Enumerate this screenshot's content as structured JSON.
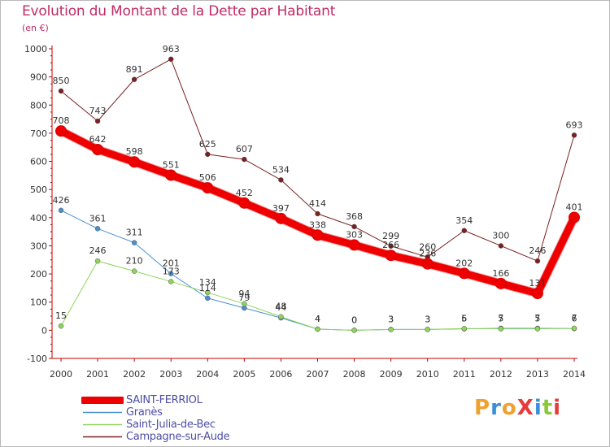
{
  "title": "Evolution du Montant de la Dette par Habitant",
  "subtitle": "(en €)",
  "logo_text": "ProXiti",
  "logo_colors": [
    "#f0a030",
    "#3a8fd8",
    "#f0a030",
    "#e83a3a",
    "#3a8fd8",
    "#8ac83a",
    "#e83a3a"
  ],
  "chart_data": {
    "type": "line",
    "x": [
      "2000",
      "2001",
      "2002",
      "2003",
      "2004",
      "2005",
      "2006",
      "2007",
      "2008",
      "2009",
      "2010",
      "2011",
      "2012",
      "2013",
      "2014"
    ],
    "ylim": [
      -100,
      1000
    ],
    "yticks": [
      -100,
      0,
      100,
      200,
      300,
      400,
      500,
      600,
      700,
      800,
      900,
      1000
    ],
    "grid": false,
    "legend_position": "bottom-left",
    "series": [
      {
        "name": "SAINT-FERRIOL",
        "color": "#ef0000",
        "width": 9,
        "values": [
          708,
          642,
          598,
          551,
          506,
          452,
          397,
          338,
          303,
          266,
          236,
          202,
          166,
          131,
          401
        ],
        "labels": [
          "708",
          "642",
          "598",
          "551",
          "506",
          "452",
          "397",
          "338",
          "303",
          "266",
          "236",
          "202",
          "166",
          "131",
          "401"
        ]
      },
      {
        "name": "Granès",
        "color": "#4a90d0",
        "width": 1,
        "values": [
          426,
          361,
          311,
          201,
          114,
          79,
          44,
          4,
          0,
          3,
          3,
          5,
          7,
          7,
          6
        ],
        "labels": [
          "426",
          "361",
          "311",
          "201",
          "114",
          "79",
          "44",
          "4",
          "0",
          "3",
          "3",
          "5",
          "7",
          "7",
          "6"
        ]
      },
      {
        "name": "Saint-Julia-de-Bec",
        "color": "#8ed45a",
        "width": 1,
        "values": [
          15,
          246,
          210,
          173,
          134,
          94,
          48,
          4,
          0,
          3,
          3,
          6,
          5,
          5,
          7
        ],
        "labels": [
          "15",
          "246",
          "210",
          "173",
          "134",
          "94",
          "48",
          "4",
          "0",
          "3",
          "3",
          "6",
          "5",
          "5",
          "7"
        ]
      },
      {
        "name": "Campagne-sur-Aude",
        "color": "#7a2020",
        "width": 1,
        "values": [
          850,
          743,
          891,
          963,
          625,
          607,
          534,
          414,
          368,
          299,
          260,
          354,
          300,
          246,
          693
        ],
        "labels": [
          "850",
          "743",
          "891",
          "963",
          "625",
          "607",
          "534",
          "414",
          "368",
          "299",
          "260",
          "354",
          "300",
          "246",
          "693"
        ]
      }
    ]
  }
}
